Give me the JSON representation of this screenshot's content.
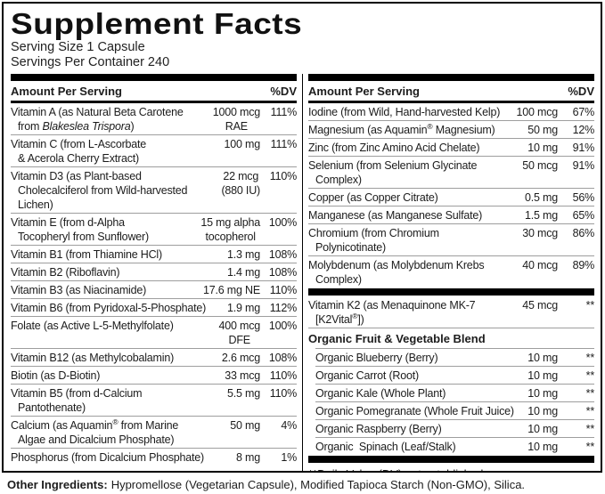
{
  "title": "Supplement Facts",
  "serving_size": "Serving Size 1 Capsule",
  "servings_per_container": "Servings Per Container 240",
  "columns_header": {
    "amount": "Amount Per Serving",
    "dv": "%DV"
  },
  "left_rows": [
    {
      "name": [
        {
          "t": "Vitamin A (as Natural Beta Carotene\nfrom "
        },
        {
          "t": "Blakeslea Trispora",
          "i": true
        },
        {
          "t": ")"
        }
      ],
      "amount": "1000 mcg\nRAE",
      "dv": "111%"
    },
    {
      "name": "Vitamin C (from L-Ascorbate\n& Acerola Cherry Extract)",
      "amount": "100 mg",
      "dv": "111%"
    },
    {
      "name": "Vitamin D3 (as Plant-based\nCholecalciferol from Wild-harvested\nLichen)",
      "amount": "22 mcg\n(880 IU)",
      "dv": "110%"
    },
    {
      "name": "Vitamin E (from d-Alpha\nTocopheryl from Sunflower)",
      "amount": "15 mg alpha\ntocopherol",
      "dv": "100%"
    },
    {
      "name": "Vitamin B1 (from Thiamine HCl)",
      "amount": "1.3 mg",
      "dv": "108%"
    },
    {
      "name": "Vitamin B2 (Riboflavin)",
      "amount": "1.4 mg",
      "dv": "108%"
    },
    {
      "name": "Vitamin B3 (as Niacinamide)",
      "amount": "17.6 mg NE",
      "dv": "110%"
    },
    {
      "name": "Vitamin B6 (from Pyridoxal-5-Phosphate)",
      "amount": "1.9 mg",
      "dv": "112%"
    },
    {
      "name": "Folate (as Active L-5-Methylfolate)",
      "amount": "400 mcg\nDFE",
      "dv": "100%"
    },
    {
      "name": "Vitamin B12 (as Methylcobalamin)",
      "amount": "2.6 mcg",
      "dv": "108%"
    },
    {
      "name": "Biotin (as D-Biotin)",
      "amount": "33 mcg",
      "dv": "110%"
    },
    {
      "name": "Vitamin B5 (from d-Calcium\nPantothenate)",
      "amount": "5.5 mg",
      "dv": "110%"
    },
    {
      "name": [
        {
          "t": "Calcium (as Aquamin"
        },
        {
          "t": "®",
          "sup": true
        },
        {
          "t": " from Marine\nAlgae and Dicalcium Phosphate)"
        }
      ],
      "amount": "50 mg",
      "dv": "4%"
    },
    {
      "name": "Phosphorus (from Dicalcium Phosphate)",
      "amount": "8 mg",
      "dv": "1%"
    }
  ],
  "right_top_rows": [
    {
      "name": "Iodine (from Wild, Hand-harvested Kelp)",
      "amount": "100 mcg",
      "dv": "67%"
    },
    {
      "name": [
        {
          "t": "Magnesium (as Aquamin"
        },
        {
          "t": "®",
          "sup": true
        },
        {
          "t": " Magnesium)"
        }
      ],
      "amount": "50 mg",
      "dv": "12%"
    },
    {
      "name": "Zinc (from Zinc Amino Acid Chelate)",
      "amount": "10 mg",
      "dv": "91%"
    },
    {
      "name": "Selenium (from Selenium Glycinate\nComplex)",
      "amount": "50 mcg",
      "dv": "91%"
    },
    {
      "name": "Copper (as Copper Citrate)",
      "amount": "0.5 mg",
      "dv": "56%"
    },
    {
      "name": "Manganese (as Manganese Sulfate)",
      "amount": "1.5 mg",
      "dv": "65%"
    },
    {
      "name": "Chromium (from Chromium\nPolynicotinate)",
      "amount": "30 mcg",
      "dv": "86%"
    },
    {
      "name": "Molybdenum (as Molybdenum Krebs\nComplex)",
      "amount": "40 mcg",
      "dv": "89%"
    }
  ],
  "k2_rows": [
    {
      "name": [
        {
          "t": "Vitamin K2 (as Menaquinone MK-7\n[K2Vital"
        },
        {
          "t": "®",
          "sup": true
        },
        {
          "t": "])"
        }
      ],
      "amount": "45 mcg",
      "dv": "**"
    }
  ],
  "blend_header": "Organic Fruit & Vegetable Blend",
  "blend_rows": [
    {
      "name": "Organic Blueberry (Berry)",
      "amount": "10 mg",
      "dv": "**"
    },
    {
      "name": "Organic Carrot (Root)",
      "amount": "10 mg",
      "dv": "**"
    },
    {
      "name": "Organic Kale (Whole Plant)",
      "amount": "10 mg",
      "dv": "**"
    },
    {
      "name": "Organic Pomegranate (Whole Fruit Juice)",
      "amount": "10 mg",
      "dv": "**"
    },
    {
      "name": "Organic Raspberry (Berry)",
      "amount": "10 mg",
      "dv": "**"
    },
    {
      "name": "Organic  Spinach (Leaf/Stalk)",
      "amount": "10 mg",
      "dv": "**"
    }
  ],
  "footnote": "**Daily Value (DV) not established.",
  "other_ingredients_label": "Other Ingredients:",
  "other_ingredients_text": "Hypromellose (Vegetarian Capsule), Modified Tapioca Starch (Non-GMO), Silica.",
  "colors": {
    "bar": "#000000",
    "separator": "#9e9e9e",
    "text": "#1c1c1c",
    "background": "#ffffff"
  }
}
